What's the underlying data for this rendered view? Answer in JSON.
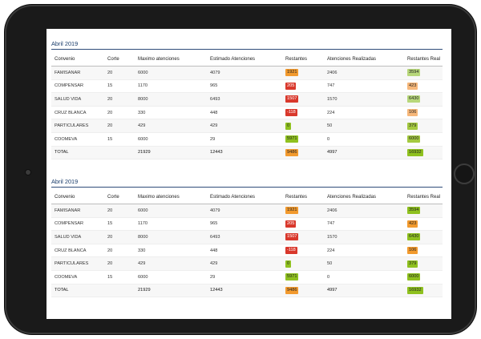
{
  "colors": {
    "red": "#d9382c",
    "orange": "#f29a2e",
    "green": "#8fc11f",
    "light_orange": "#f6b77a",
    "light_green": "#b7d77a",
    "olive_green": "#a4c940"
  },
  "sections": [
    {
      "title": "Abril 2019",
      "headers": [
        "Convenio",
        "Corte",
        "Maximo atenciones",
        "Estimado Atenciones",
        "Restantes",
        "Atenciones Realizadas",
        "Restantes Real"
      ],
      "rows": [
        {
          "convenio": "FAMISANAR",
          "corte": "20",
          "maximo": "6000",
          "estimado": "4079",
          "restantes": "1921",
          "restantes_color": "orange",
          "realizadas": "2406",
          "real": "3594",
          "real_color": "light_green"
        },
        {
          "convenio": "COMPENSAR",
          "corte": "15",
          "maximo": "1170",
          "estimado": "965",
          "restantes": "205",
          "restantes_color": "red",
          "realizadas": "747",
          "real": "423",
          "real_color": "light_orange"
        },
        {
          "convenio": "SALUD VIDA",
          "corte": "20",
          "maximo": "8000",
          "estimado": "6493",
          "restantes": "1507",
          "restantes_color": "red",
          "realizadas": "1570",
          "real": "6430",
          "real_color": "light_green"
        },
        {
          "convenio": "CRUZ BLANCA",
          "corte": "20",
          "maximo": "330",
          "estimado": "448",
          "restantes": "-118",
          "restantes_color": "red",
          "realizadas": "224",
          "real": "106",
          "real_color": "light_orange"
        },
        {
          "convenio": "PARTICULARES",
          "corte": "20",
          "maximo": "429",
          "estimado": "429",
          "restantes": "0",
          "restantes_color": "green",
          "realizadas": "50",
          "real": "379",
          "real_color": "olive_green"
        },
        {
          "convenio": "COOMEVA",
          "corte": "15",
          "maximo": "6000",
          "estimado": "29",
          "restantes": "5971",
          "restantes_color": "green",
          "realizadas": "0",
          "real": "6000",
          "real_color": "olive_green"
        }
      ],
      "total": {
        "label": "TOTAL",
        "maximo": "21929",
        "estimado": "12443",
        "restantes": "9486",
        "restantes_color": "orange",
        "realizadas": "4997",
        "real": "16932",
        "real_color": "green"
      }
    },
    {
      "title": "Abril 2019",
      "headers": [
        "Convenio",
        "Corte",
        "Maximo atenciones",
        "Estimado Atenciones",
        "Restantes",
        "Atenciones Realizadas",
        "Restantes Real"
      ],
      "rows": [
        {
          "convenio": "FAMISANAR",
          "corte": "20",
          "maximo": "6000",
          "estimado": "4079",
          "restantes": "1921",
          "restantes_color": "orange",
          "realizadas": "2406",
          "real": "3594",
          "real_color": "green"
        },
        {
          "convenio": "COMPENSAR",
          "corte": "15",
          "maximo": "1170",
          "estimado": "965",
          "restantes": "205",
          "restantes_color": "red",
          "realizadas": "747",
          "real": "423",
          "real_color": "orange"
        },
        {
          "convenio": "SALUD VIDA",
          "corte": "20",
          "maximo": "8000",
          "estimado": "6493",
          "restantes": "1507",
          "restantes_color": "red",
          "realizadas": "1570",
          "real": "6430",
          "real_color": "green"
        },
        {
          "convenio": "CRUZ BLANCA",
          "corte": "20",
          "maximo": "330",
          "estimado": "448",
          "restantes": "-118",
          "restantes_color": "red",
          "realizadas": "224",
          "real": "106",
          "real_color": "orange"
        },
        {
          "convenio": "PARTICULARES",
          "corte": "20",
          "maximo": "429",
          "estimado": "429",
          "restantes": "0",
          "restantes_color": "green",
          "realizadas": "50",
          "real": "379",
          "real_color": "green"
        },
        {
          "convenio": "COOMEVA",
          "corte": "15",
          "maximo": "6000",
          "estimado": "29",
          "restantes": "5971",
          "restantes_color": "green",
          "realizadas": "0",
          "real": "6000",
          "real_color": "green"
        }
      ],
      "total": {
        "label": "TOTAL",
        "maximo": "21929",
        "estimado": "12443",
        "restantes": "9486",
        "restantes_color": "orange",
        "realizadas": "4997",
        "real": "16932",
        "real_color": "green"
      }
    }
  ]
}
